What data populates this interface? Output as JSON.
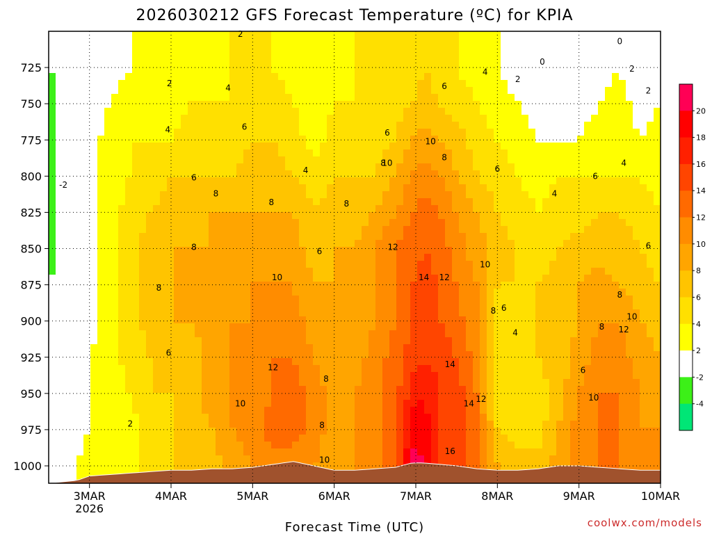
{
  "chart_data": {
    "type": "heatmap",
    "title": "2026030212 GFS Forecast Temperature (ºC) for KPIA",
    "xlabel": "Forecast Time (UTC)",
    "ylabel": "",
    "watermark": "coolwx.com/models",
    "x_domain": [
      2.5,
      10.0
    ],
    "y_domain": [
      700,
      1012
    ],
    "x_ticks": [
      {
        "value": 3,
        "label": "3MAR",
        "sublabel": "2026"
      },
      {
        "value": 4,
        "label": "4MAR"
      },
      {
        "value": 5,
        "label": "5MAR"
      },
      {
        "value": 6,
        "label": "6MAR"
      },
      {
        "value": 7,
        "label": "7MAR"
      },
      {
        "value": 8,
        "label": "8MAR"
      },
      {
        "value": 9,
        "label": "9MAR"
      },
      {
        "value": 10,
        "label": "10MAR"
      }
    ],
    "y_ticks": [
      725,
      750,
      775,
      800,
      825,
      850,
      875,
      900,
      925,
      950,
      975,
      1000
    ],
    "colorbar": [
      {
        "lo": -6,
        "hi": -4,
        "color": "#00e676",
        "label": "-4"
      },
      {
        "lo": -4,
        "hi": -2,
        "color": "#3cf018",
        "label": "-2"
      },
      {
        "lo": -2,
        "hi": 2,
        "color": "#ffffff",
        "label": "2"
      },
      {
        "lo": 2,
        "hi": 4,
        "color": "#ffff00",
        "label": "4"
      },
      {
        "lo": 4,
        "hi": 6,
        "color": "#ffe000",
        "label": "6"
      },
      {
        "lo": 6,
        "hi": 8,
        "color": "#ffc400",
        "label": "8"
      },
      {
        "lo": 8,
        "hi": 10,
        "color": "#ffa500",
        "label": "10"
      },
      {
        "lo": 10,
        "hi": 12,
        "color": "#ff8c00",
        "label": "12"
      },
      {
        "lo": 12,
        "hi": 14,
        "color": "#ff6a00",
        "label": "14"
      },
      {
        "lo": 14,
        "hi": 16,
        "color": "#ff4500",
        "label": "16"
      },
      {
        "lo": 16,
        "hi": 18,
        "color": "#ff2000",
        "label": "18"
      },
      {
        "lo": 18,
        "hi": 20,
        "color": "#ff0000",
        "label": "20"
      },
      {
        "lo": 20,
        "hi": 22,
        "color": "#ff0055",
        "label": ""
      }
    ],
    "columns": [
      {
        "x": 2.5,
        "sfc": 1012,
        "temps": [
          -2,
          -3,
          -3,
          -3,
          -3,
          -3,
          -2,
          -1,
          -2,
          -2,
          0,
          1
        ]
      },
      {
        "x": 2.85,
        "sfc": 1010,
        "temps": [
          -1,
          0,
          0,
          0,
          0,
          0,
          1,
          1,
          1,
          1,
          1,
          2
        ]
      },
      {
        "x": 3.0,
        "sfc": 1007,
        "temps": [
          0,
          1,
          1,
          1,
          1,
          1,
          1,
          1,
          2,
          2,
          2,
          3
        ]
      },
      {
        "x": 3.25,
        "sfc": 1006,
        "temps": [
          1,
          2,
          3,
          3,
          3,
          3,
          3,
          3,
          3,
          3,
          3,
          3
        ]
      },
      {
        "x": 3.5,
        "sfc": 1005,
        "temps": [
          2,
          3,
          4,
          4,
          5,
          5,
          5,
          5,
          5,
          4,
          3,
          3
        ]
      },
      {
        "x": 3.75,
        "sfc": 1004,
        "temps": [
          2,
          3,
          4,
          5,
          6,
          7,
          7,
          7,
          6,
          6,
          5,
          5
        ]
      },
      {
        "x": 4.0,
        "sfc": 1003,
        "temps": [
          3,
          3,
          4,
          6,
          7,
          8,
          8,
          8,
          7,
          6,
          6,
          6
        ]
      },
      {
        "x": 4.25,
        "sfc": 1003,
        "temps": [
          3,
          4,
          5,
          6,
          7,
          8,
          8,
          8,
          7,
          7,
          7,
          7
        ]
      },
      {
        "x": 4.5,
        "sfc": 1002,
        "temps": [
          3,
          4,
          5,
          6,
          8,
          8,
          9,
          9,
          9,
          9,
          8,
          7
        ]
      },
      {
        "x": 4.75,
        "sfc": 1002,
        "temps": [
          4,
          4,
          5,
          6,
          8,
          9,
          9,
          10,
          10,
          10,
          10,
          9
        ]
      },
      {
        "x": 5.0,
        "sfc": 1001,
        "temps": [
          4,
          5,
          6,
          7,
          8,
          9,
          10,
          10,
          11,
          11,
          11,
          10
        ]
      },
      {
        "x": 5.25,
        "sfc": 999,
        "temps": [
          4,
          5,
          6,
          7,
          8,
          9,
          10,
          11,
          12,
          12,
          13,
          11
        ]
      },
      {
        "x": 5.5,
        "sfc": 997,
        "temps": [
          3,
          4,
          5,
          6,
          8,
          9,
          10,
          11,
          12,
          13,
          13,
          11
        ]
      },
      {
        "x": 5.75,
        "sfc": 1000,
        "temps": [
          2,
          3,
          3,
          5,
          6,
          7,
          8,
          9,
          10,
          11,
          11,
          10
        ]
      },
      {
        "x": 6.0,
        "sfc": 1003,
        "temps": [
          3,
          4,
          5,
          6,
          7,
          8,
          8,
          8,
          9,
          9,
          9,
          9
        ]
      },
      {
        "x": 6.25,
        "sfc": 1003,
        "temps": [
          4,
          4,
          5,
          6,
          7,
          8,
          9,
          9,
          9,
          10,
          10,
          10
        ]
      },
      {
        "x": 6.5,
        "sfc": 1002,
        "temps": [
          4,
          5,
          5,
          6,
          8,
          10,
          10,
          10,
          11,
          11,
          11,
          11
        ]
      },
      {
        "x": 6.75,
        "sfc": 1001,
        "temps": [
          5,
          5,
          6,
          8,
          10,
          12,
          12,
          12,
          13,
          13,
          14,
          13
        ]
      },
      {
        "x": 6.95,
        "sfc": 998,
        "temps": [
          5,
          6,
          8,
          10,
          12,
          13,
          14,
          14,
          15,
          17,
          19,
          21
        ]
      },
      {
        "x": 7.1,
        "sfc": 998,
        "temps": [
          6,
          7,
          9,
          11,
          13,
          14,
          15,
          15,
          16,
          18,
          19,
          20
        ]
      },
      {
        "x": 7.3,
        "sfc": 999,
        "temps": [
          5,
          6,
          8,
          10,
          12,
          13,
          14,
          14,
          15,
          16,
          16,
          15
        ]
      },
      {
        "x": 7.5,
        "sfc": 1000,
        "temps": [
          4,
          5,
          7,
          8,
          10,
          11,
          12,
          13,
          14,
          15,
          15,
          15
        ]
      },
      {
        "x": 7.75,
        "sfc": 1002,
        "temps": [
          3,
          4,
          5,
          6,
          8,
          9,
          10,
          10,
          11,
          12,
          12,
          12
        ]
      },
      {
        "x": 8.0,
        "sfc": 1003,
        "temps": [
          2,
          3,
          4,
          5,
          6,
          7,
          6,
          5,
          4,
          5,
          6,
          8
        ]
      },
      {
        "x": 8.25,
        "sfc": 1003,
        "temps": [
          1,
          2,
          3,
          4,
          5,
          6,
          6,
          5,
          4,
          4,
          5,
          7
        ]
      },
      {
        "x": 8.5,
        "sfc": 1002,
        "temps": [
          0,
          1,
          2,
          3,
          4,
          5,
          6,
          6,
          6,
          5,
          5,
          7
        ]
      },
      {
        "x": 8.75,
        "sfc": 1000,
        "temps": [
          1,
          1,
          2,
          4,
          5,
          6,
          7,
          7,
          7,
          7,
          8,
          9
        ]
      },
      {
        "x": 9.0,
        "sfc": 1000,
        "temps": [
          0,
          1,
          2,
          4,
          5,
          7,
          8,
          8,
          9,
          10,
          11,
          11
        ]
      },
      {
        "x": 9.25,
        "sfc": 1001,
        "temps": [
          1,
          2,
          3,
          4,
          6,
          7,
          9,
          10,
          11,
          12,
          12,
          12
        ]
      },
      {
        "x": 9.5,
        "sfc": 1002,
        "temps": [
          2,
          3,
          3,
          4,
          6,
          7,
          8,
          10,
          11,
          12,
          12,
          12
        ]
      },
      {
        "x": 9.75,
        "sfc": 1003,
        "temps": [
          0,
          1,
          2,
          4,
          5,
          6,
          7,
          8,
          9,
          10,
          10,
          11
        ]
      },
      {
        "x": 10.0,
        "sfc": 1003,
        "temps": [
          1,
          2,
          3,
          3,
          4,
          5,
          6,
          7,
          8,
          9,
          10,
          11
        ]
      }
    ],
    "contour_labels": [
      {
        "x": 2.68,
        "p": 806,
        "text": "-2"
      },
      {
        "x": 3.5,
        "p": 971,
        "text": "2"
      },
      {
        "x": 3.98,
        "p": 736,
        "text": "2"
      },
      {
        "x": 3.96,
        "p": 768,
        "text": "4"
      },
      {
        "x": 4.28,
        "p": 801,
        "text": "6"
      },
      {
        "x": 4.28,
        "p": 849,
        "text": "8"
      },
      {
        "x": 3.85,
        "p": 877,
        "text": "8"
      },
      {
        "x": 3.97,
        "p": 922,
        "text": "6"
      },
      {
        "x": 4.55,
        "p": 812,
        "text": "8"
      },
      {
        "x": 4.7,
        "p": 739,
        "text": "4"
      },
      {
        "x": 4.9,
        "p": 766,
        "text": "6"
      },
      {
        "x": 5.23,
        "p": 818,
        "text": "8"
      },
      {
        "x": 5.3,
        "p": 870,
        "text": "10"
      },
      {
        "x": 5.25,
        "p": 932,
        "text": "12"
      },
      {
        "x": 4.85,
        "p": 957,
        "text": "10"
      },
      {
        "x": 5.65,
        "p": 796,
        "text": "4"
      },
      {
        "x": 5.82,
        "p": 852,
        "text": "6"
      },
      {
        "x": 5.9,
        "p": 940,
        "text": "8"
      },
      {
        "x": 5.85,
        "p": 972,
        "text": "8"
      },
      {
        "x": 5.88,
        "p": 996,
        "text": "10"
      },
      {
        "x": 6.15,
        "p": 819,
        "text": "8"
      },
      {
        "x": 6.6,
        "p": 791,
        "text": "8"
      },
      {
        "x": 6.65,
        "p": 791,
        "text": "10"
      },
      {
        "x": 6.65,
        "p": 770,
        "text": "6"
      },
      {
        "x": 6.72,
        "p": 849,
        "text": "12"
      },
      {
        "x": 7.1,
        "p": 870,
        "text": "14"
      },
      {
        "x": 7.35,
        "p": 870,
        "text": "12"
      },
      {
        "x": 7.35,
        "p": 738,
        "text": "6"
      },
      {
        "x": 7.18,
        "p": 776,
        "text": "10"
      },
      {
        "x": 7.35,
        "p": 787,
        "text": "8"
      },
      {
        "x": 7.42,
        "p": 930,
        "text": "14"
      },
      {
        "x": 7.65,
        "p": 957,
        "text": "14"
      },
      {
        "x": 7.8,
        "p": 954,
        "text": "12"
      },
      {
        "x": 7.42,
        "p": 990,
        "text": "16"
      },
      {
        "x": 7.85,
        "p": 728,
        "text": "4"
      },
      {
        "x": 8.25,
        "p": 733,
        "text": "2"
      },
      {
        "x": 8.0,
        "p": 795,
        "text": "6"
      },
      {
        "x": 7.85,
        "p": 861,
        "text": "10"
      },
      {
        "x": 7.95,
        "p": 893,
        "text": "8"
      },
      {
        "x": 8.08,
        "p": 891,
        "text": "6"
      },
      {
        "x": 8.22,
        "p": 908,
        "text": "4"
      },
      {
        "x": 8.7,
        "p": 812,
        "text": "4"
      },
      {
        "x": 9.2,
        "p": 800,
        "text": "6"
      },
      {
        "x": 9.55,
        "p": 791,
        "text": "4"
      },
      {
        "x": 9.28,
        "p": 904,
        "text": "8"
      },
      {
        "x": 9.18,
        "p": 953,
        "text": "10"
      },
      {
        "x": 9.05,
        "p": 934,
        "text": "6"
      },
      {
        "x": 9.65,
        "p": 897,
        "text": "10"
      },
      {
        "x": 9.55,
        "p": 906,
        "text": "12"
      },
      {
        "x": 9.5,
        "p": 882,
        "text": "8"
      },
      {
        "x": 9.85,
        "p": 848,
        "text": "6"
      },
      {
        "x": 8.55,
        "p": 721,
        "text": "0"
      },
      {
        "x": 9.5,
        "p": 707,
        "text": "0"
      },
      {
        "x": 9.65,
        "p": 726,
        "text": "2"
      },
      {
        "x": 9.85,
        "p": 741,
        "text": "2"
      },
      {
        "x": 4.85,
        "p": 702,
        "text": "2"
      }
    ]
  }
}
